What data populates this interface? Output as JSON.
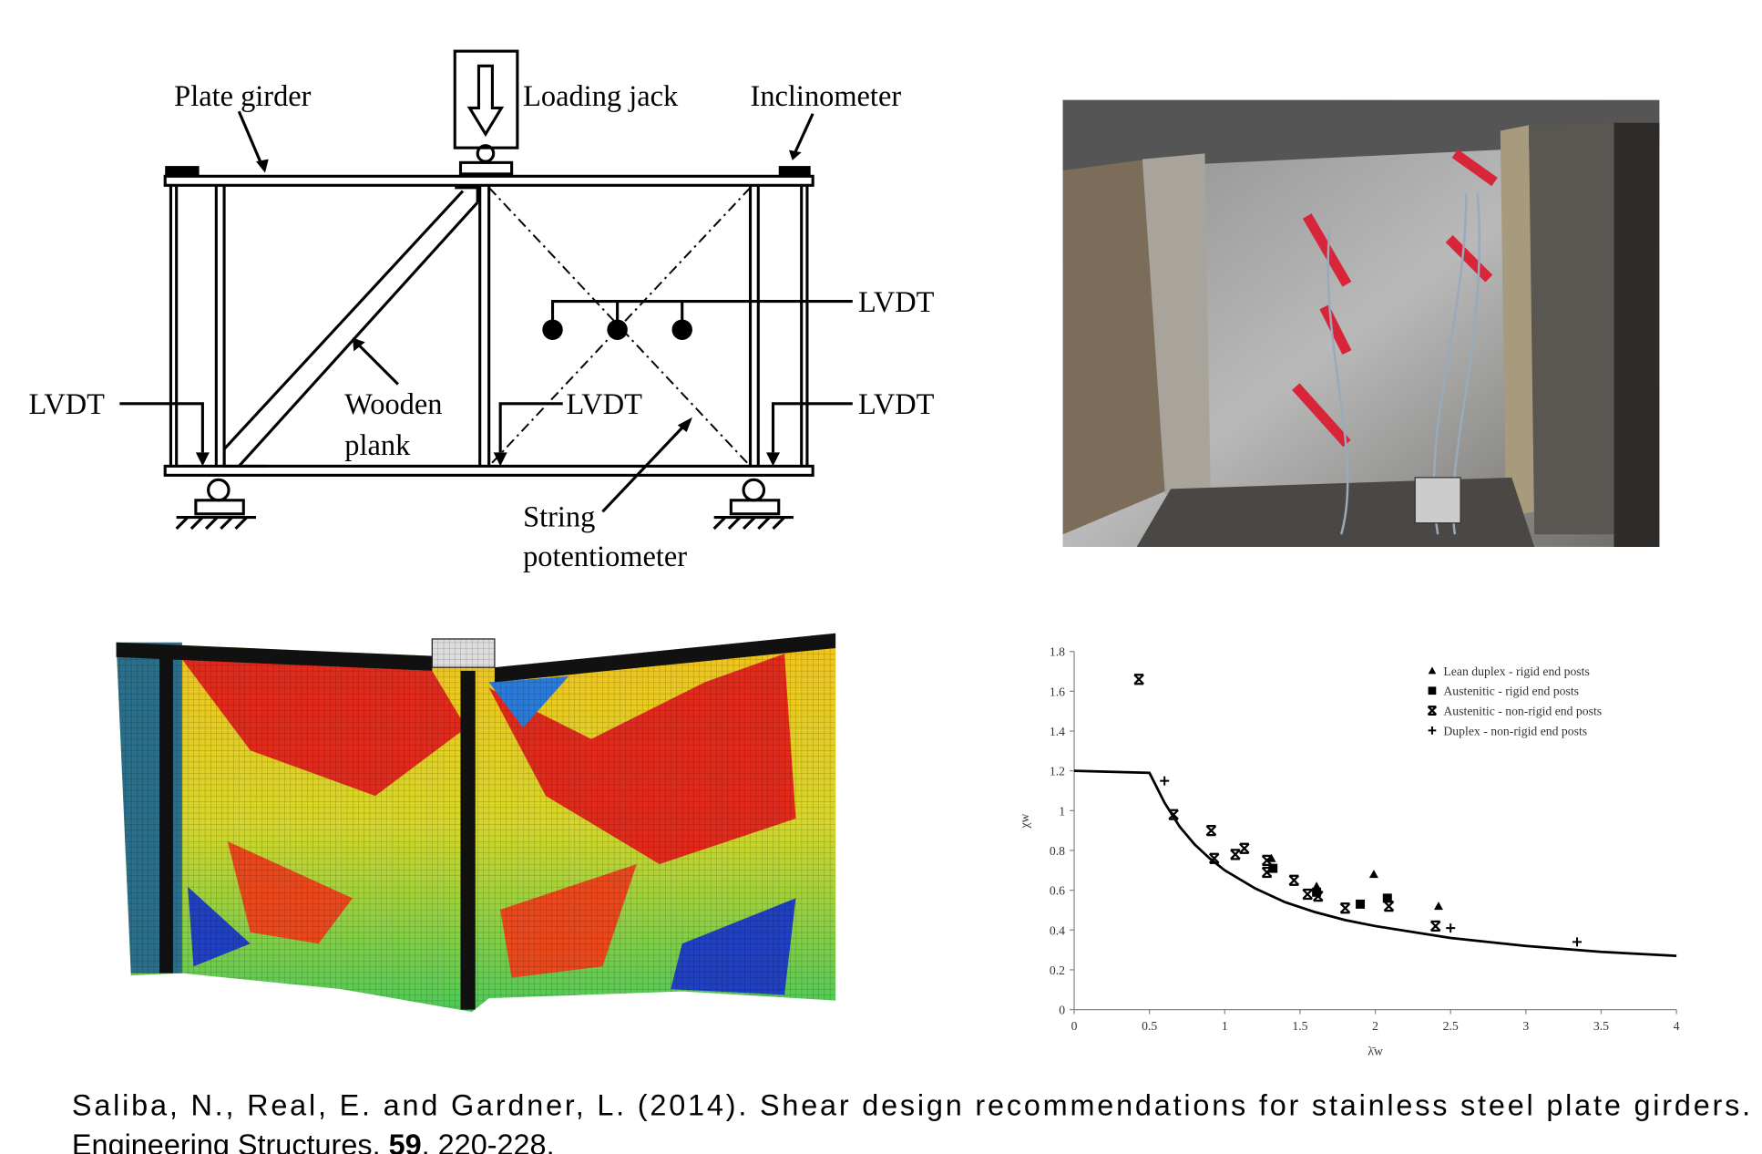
{
  "diagram": {
    "plate_girder": "Plate girder",
    "loading_jack": "Loading jack",
    "inclinometer": "Inclinometer",
    "lvdt_top": "LVDT",
    "lvdt_left": "LVDT",
    "lvdt_middle": "LVDT",
    "lvdt_right": "LVDT",
    "wooden_plank": [
      "Wooden",
      "plank"
    ],
    "string_potentiometer": [
      "String",
      "potentiometer"
    ]
  },
  "chart_data": {
    "type": "scatter",
    "x_label": "λ̄w",
    "y_label": "χw",
    "xlim": [
      0,
      4
    ],
    "xticks": [
      0,
      0.5,
      1,
      1.5,
      2,
      2.5,
      3,
      3.5,
      4
    ],
    "ylim": [
      0,
      1.8
    ],
    "yticks": [
      0,
      0.2,
      0.4,
      0.6,
      0.8,
      1,
      1.2,
      1.4,
      1.6,
      1.8
    ],
    "legend": "upper right",
    "color": "#000000",
    "series": [
      {
        "name": "Lean duplex - rigid end posts",
        "marker": "triangle",
        "x": [
          1.31,
          1.61,
          1.99,
          2.42
        ],
        "values": [
          0.76,
          0.62,
          0.68,
          0.52
        ]
      },
      {
        "name": "Austenitic - rigid end posts",
        "marker": "square",
        "x": [
          1.32,
          1.61,
          1.9,
          2.08
        ],
        "values": [
          0.71,
          0.59,
          0.53,
          0.56
        ]
      },
      {
        "name": "Austenitic - non-rigid end posts",
        "marker": "cross",
        "x": [
          0.43,
          0.66,
          0.91,
          0.93,
          1.07,
          1.13,
          1.28,
          1.28,
          1.46,
          1.55,
          1.62,
          1.8,
          2.09,
          2.4
        ],
        "values": [
          1.66,
          0.98,
          0.9,
          0.76,
          0.78,
          0.81,
          0.75,
          0.69,
          0.65,
          0.58,
          0.57,
          0.51,
          0.52,
          0.42
        ]
      },
      {
        "name": "Duplex - non-rigid end posts",
        "marker": "plus",
        "x": [
          0.6,
          2.5,
          3.34
        ],
        "values": [
          1.15,
          0.41,
          0.34
        ]
      }
    ],
    "line": {
      "x": [
        0,
        0.5,
        0.6,
        0.7,
        0.8,
        0.9,
        1,
        1.2,
        1.4,
        1.6,
        1.8,
        2,
        2.5,
        3,
        3.5,
        4
      ],
      "values": [
        1.2,
        1.19,
        1.04,
        0.92,
        0.83,
        0.76,
        0.7,
        0.61,
        0.54,
        0.49,
        0.45,
        0.42,
        0.36,
        0.32,
        0.29,
        0.27
      ]
    }
  },
  "citation": {
    "line1": "Saliba, N., Real, E. and Gardner, L. (2014). Shear design recommendations for stainless steel plate girders.",
    "journal": "Engineering Structures.",
    "volume": "59",
    "pages": ", 220-228."
  }
}
